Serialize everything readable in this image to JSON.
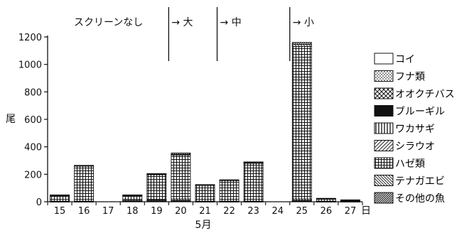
{
  "chart_data": {
    "type": "bar",
    "stacked": true,
    "ylabel": "尾",
    "xlabel": "5月",
    "x_unit": "日",
    "ylim": [
      0,
      1200
    ],
    "yticks": [
      0,
      200,
      400,
      600,
      800,
      1000,
      1200
    ],
    "categories": [
      "15",
      "16",
      "17",
      "18",
      "19",
      "20",
      "21",
      "22",
      "23",
      "24",
      "25",
      "26",
      "27"
    ],
    "series": [
      {
        "name": "コイ",
        "pattern": "blank",
        "values": [
          0,
          0,
          0,
          0,
          0,
          0,
          0,
          0,
          0,
          0,
          0,
          0,
          0
        ]
      },
      {
        "name": "フナ類",
        "pattern": "dots",
        "values": [
          0,
          0,
          0,
          5,
          5,
          5,
          0,
          0,
          0,
          0,
          5,
          0,
          0
        ]
      },
      {
        "name": "オオクチバス",
        "pattern": "crosshatch",
        "values": [
          0,
          0,
          0,
          0,
          0,
          0,
          0,
          0,
          0,
          0,
          0,
          0,
          0
        ]
      },
      {
        "name": "ブルーギル",
        "pattern": "solid",
        "values": [
          2,
          2,
          0,
          2,
          2,
          5,
          2,
          2,
          2,
          0,
          5,
          2,
          2
        ]
      },
      {
        "name": "ワカサギ",
        "pattern": "vertical",
        "values": [
          3,
          3,
          0,
          3,
          5,
          10,
          3,
          3,
          3,
          0,
          10,
          3,
          3
        ]
      },
      {
        "name": "シラウオ",
        "pattern": "diagonal",
        "values": [
          0,
          0,
          0,
          0,
          0,
          0,
          0,
          0,
          0,
          0,
          0,
          0,
          0
        ]
      },
      {
        "name": "ハゼ類",
        "pattern": "grid",
        "values": [
          40,
          255,
          0,
          35,
          185,
          320,
          115,
          150,
          275,
          0,
          1110,
          15,
          5
        ]
      },
      {
        "name": "テナガエビ",
        "pattern": "backdiagonal",
        "values": [
          3,
          3,
          0,
          3,
          5,
          5,
          3,
          3,
          5,
          0,
          15,
          3,
          2
        ]
      },
      {
        "name": "その他の魚",
        "pattern": "hatch",
        "values": [
          2,
          2,
          0,
          2,
          3,
          10,
          2,
          2,
          5,
          0,
          15,
          2,
          2
        ]
      }
    ],
    "annotations": [
      {
        "text": "スクリーンなし",
        "after": ""
      },
      {
        "text": "→ 大",
        "after": "19"
      },
      {
        "text": "→ 中",
        "after": "21"
      },
      {
        "text": "→ 小",
        "after": "24"
      }
    ],
    "legend_position": "right",
    "grid": false
  }
}
